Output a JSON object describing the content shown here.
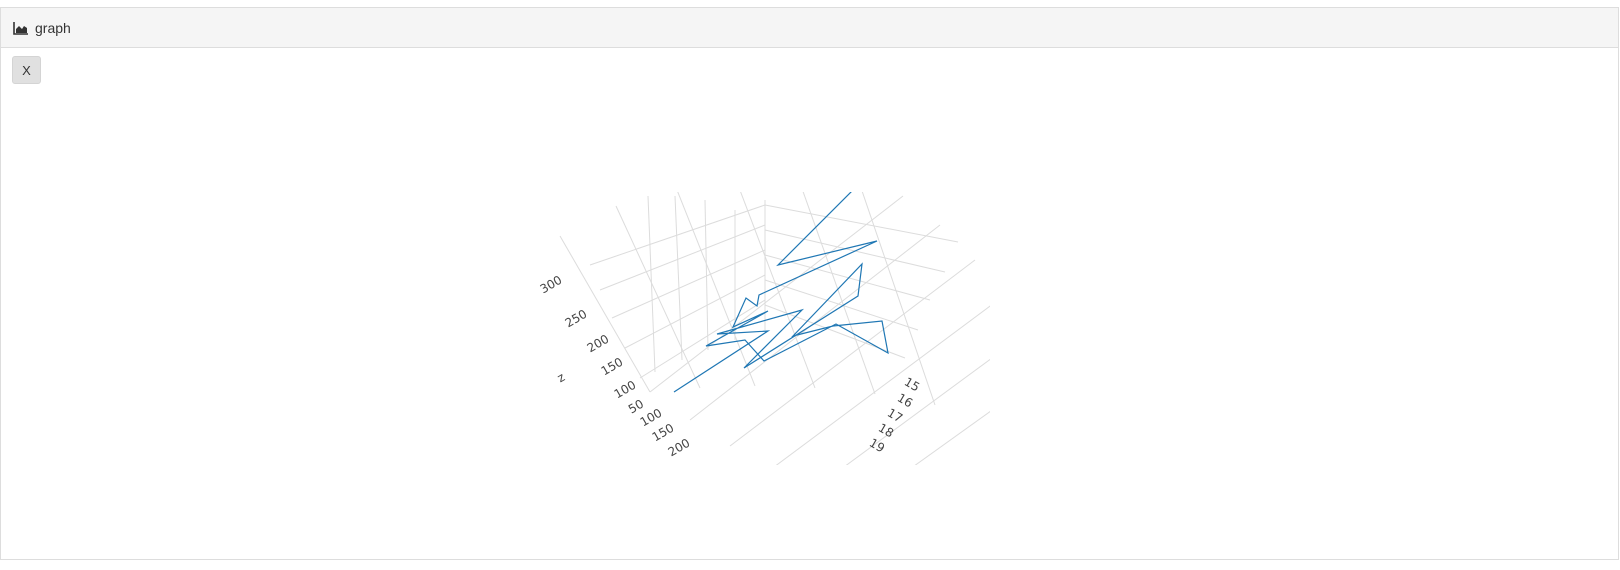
{
  "panel": {
    "title": "graph",
    "icon": "area-chart-icon",
    "close_label": "X"
  },
  "chart_data": {
    "type": "line",
    "dimensions": "3d",
    "color": "#1f77b4",
    "grid": true,
    "x_ticks": [
      "15",
      "16",
      "17",
      "18",
      "19"
    ],
    "y_ticks": [
      "100",
      "150",
      "200"
    ],
    "z_ticks": [
      "50",
      "100",
      "150",
      "200",
      "250",
      "300"
    ],
    "zlabel": "z"
  }
}
